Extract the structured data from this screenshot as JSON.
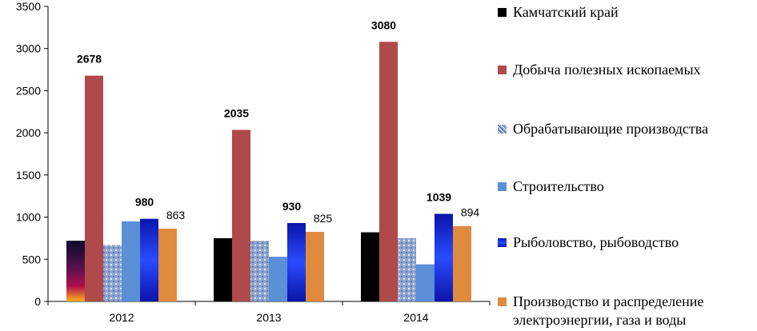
{
  "chart_data": {
    "type": "bar",
    "title": "",
    "xlabel": "",
    "ylabel": "",
    "ylim": [
      0,
      3500
    ],
    "yticks": [
      0,
      500,
      1000,
      1500,
      2000,
      2500,
      3000,
      3500
    ],
    "categories": [
      "2012",
      "2013",
      "2014"
    ],
    "grid": false,
    "legend_position": "right",
    "series": [
      {
        "name": "Камчатский край",
        "values": [
          720,
          750,
          820
        ],
        "color": "#000000",
        "labels": [
          null,
          null,
          null
        ],
        "label_bold": false
      },
      {
        "name": "Добыча полезных ископаемых",
        "values": [
          2678,
          2035,
          3080
        ],
        "color": "#b04a4a",
        "labels": [
          "2678",
          "2035",
          "3080"
        ],
        "label_bold": true
      },
      {
        "name": "Обрабатывающие производства",
        "values": [
          670,
          720,
          750
        ],
        "color": "#8fa6cf",
        "labels": [
          null,
          null,
          null
        ],
        "label_bold": false
      },
      {
        "name": "Строительство",
        "values": [
          950,
          530,
          440
        ],
        "color": "#5b8fd6",
        "labels": [
          null,
          null,
          null
        ],
        "label_bold": false
      },
      {
        "name": "Рыболовство, рыбоводство",
        "values": [
          980,
          930,
          1039
        ],
        "color": "#1a2fd0",
        "labels": [
          "980",
          "930",
          "1039"
        ],
        "label_bold": true
      },
      {
        "name": "Производство и распределение электроэнергии, газа и воды",
        "values": [
          863,
          825,
          894
        ],
        "color": "#e08a3e",
        "labels": [
          "863",
          "825",
          "894"
        ],
        "label_bold": false
      }
    ]
  }
}
